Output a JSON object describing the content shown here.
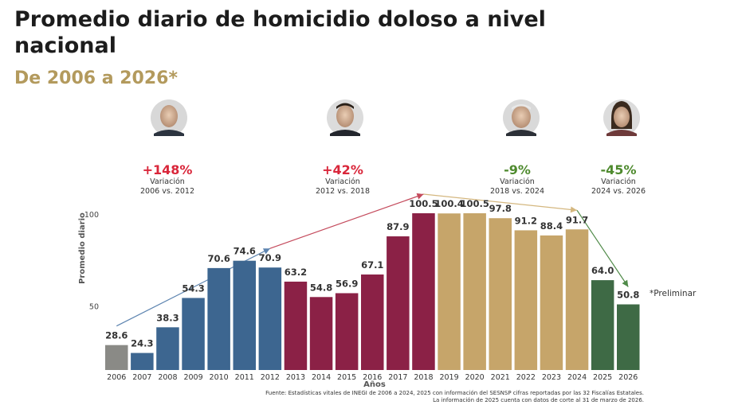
{
  "title": "Promedio diario de homicidio doloso a nivel nacional",
  "subtitle": "De 2006 a 2026*",
  "colors": {
    "gray": "#8a8a86",
    "blue": "#3d6690",
    "maroon": "#8b2146",
    "gold": "#c6a56a",
    "green": "#3e6a45",
    "red_text": "#d9263a",
    "green_text": "#4e8a2e"
  },
  "chart_data": {
    "type": "bar",
    "categories": [
      "2006",
      "2007",
      "2008",
      "2009",
      "2010",
      "2011",
      "2012",
      "2013",
      "2014",
      "2015",
      "2016",
      "2017",
      "2018",
      "2019",
      "2020",
      "2021",
      "2022",
      "2023",
      "2024",
      "2025",
      "2026"
    ],
    "values": [
      28.6,
      24.3,
      38.3,
      54.3,
      70.6,
      74.6,
      70.9,
      63.2,
      54.8,
      56.9,
      67.1,
      87.9,
      100.5,
      100.4,
      100.5,
      97.8,
      91.2,
      88.4,
      91.7,
      64.0,
      50.8
    ],
    "value_labels": [
      "28.6",
      "24.3",
      "38.3",
      "54.3",
      "70.6",
      "74.6",
      "70.9",
      "63.2",
      "54.8",
      "56.9",
      "67.1",
      "87.9",
      "100.5",
      "100.4",
      "100.5",
      "97.8",
      "91.2",
      "88.4",
      "91.7",
      "64.0",
      "50.8"
    ],
    "color_groups": [
      "gray",
      "blue",
      "blue",
      "blue",
      "blue",
      "blue",
      "blue",
      "maroon",
      "maroon",
      "maroon",
      "maroon",
      "maroon",
      "maroon",
      "gold",
      "gold",
      "gold",
      "gold",
      "gold",
      "gold",
      "green",
      "green"
    ],
    "xlabel": "Años",
    "ylabel": "Promedio diario",
    "yticks": [
      {
        "value": 50,
        "label": "50"
      },
      {
        "value": 100,
        "label": "100"
      }
    ],
    "ylim": [
      15,
      100.5
    ],
    "grid": false,
    "annotations": [
      {
        "variation": "+148%",
        "label": "Variación",
        "range": "2006 vs. 2012",
        "from_index": 0,
        "to_index": 6,
        "color": "red_text",
        "arrow_color": "#5d84b0"
      },
      {
        "variation": "+42%",
        "label": "Variación",
        "range": "2012 vs. 2018",
        "from_index": 6,
        "to_index": 12,
        "color": "red_text",
        "arrow_color": "#c44a5c"
      },
      {
        "variation": "-9%",
        "label": "Variación",
        "range": "2018 vs. 2024",
        "from_index": 12,
        "to_index": 18,
        "color": "green_text",
        "arrow_color": "#d4b77f"
      },
      {
        "variation": "-45%",
        "label": "Variación",
        "range": "2024 vs.  2026",
        "from_index": 18,
        "to_index": 20,
        "color": "green_text",
        "arrow_color": "#4f8a48"
      }
    ],
    "note": "*Preliminar"
  },
  "source": {
    "line1": "Fuente: Estadísticas vitales de INEGI de 2006 a 2024, 2025 con información del SESNSP cifras reportadas por las 32 Fiscalías Estatales.",
    "line2": "La información de 2025 cuenta con datos de corte al 31 de marzo de 2026."
  }
}
